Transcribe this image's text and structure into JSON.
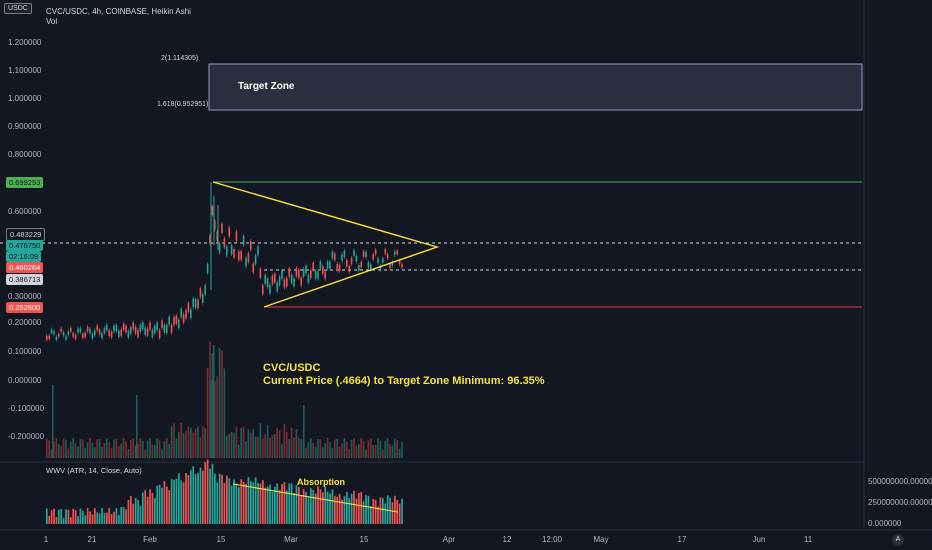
{
  "header": {
    "symbol_line": "CVC/USDC, 4h, COINBASE, Heikin Ashi",
    "vol_label": "Vol",
    "currency_badge": "USDC"
  },
  "price_axis": {
    "labels": [
      "1.200000",
      "1.100000",
      "1.000000",
      "0.900000",
      "0.800000",
      "0.600000",
      "0.300000",
      "0.200000",
      "0.100000",
      "0.000000",
      "-0.100000",
      "-0.200000"
    ]
  },
  "price_tags": {
    "resistance_top": "0.699253",
    "upper": "0.483229",
    "current_price": "0.476750",
    "countdown": "02:16:09",
    "low_marker": "0.460264",
    "lower": "0.386713",
    "support": "0.252600"
  },
  "wwv_axis": {
    "labels": [
      "500000000.000000",
      "250000000.000000",
      "0.000000"
    ]
  },
  "time_axis": {
    "labels": [
      "1",
      "21",
      "Feb",
      "15",
      "Mar",
      "15",
      "Apr",
      "12",
      "12:00",
      "May",
      "17",
      "Jun",
      "11",
      "A"
    ]
  },
  "indicator": {
    "label": "WWV (ATR, 14, Close, Auto)"
  },
  "annotations": {
    "fib_2": "2(1.114305)",
    "fib_1618": "1.618(0.952951)",
    "target_zone": "Target Zone",
    "pair": "CVC/USDC",
    "summary": "Current Price (.4664) to Target Zone Minimum: 96.35%",
    "absorption": "Absorption"
  },
  "colors": {
    "background": "#131722",
    "bull": "#26a69a",
    "bear": "#ef5350",
    "triangle": "#f5e33f",
    "annotation_text": "#f5e33f",
    "resistance": "#4caf50",
    "support": "#f23645",
    "target_zone_fill": "#2a2e3e"
  },
  "icons": {
    "bottom_right": "tradingview-logo-icon"
  }
}
